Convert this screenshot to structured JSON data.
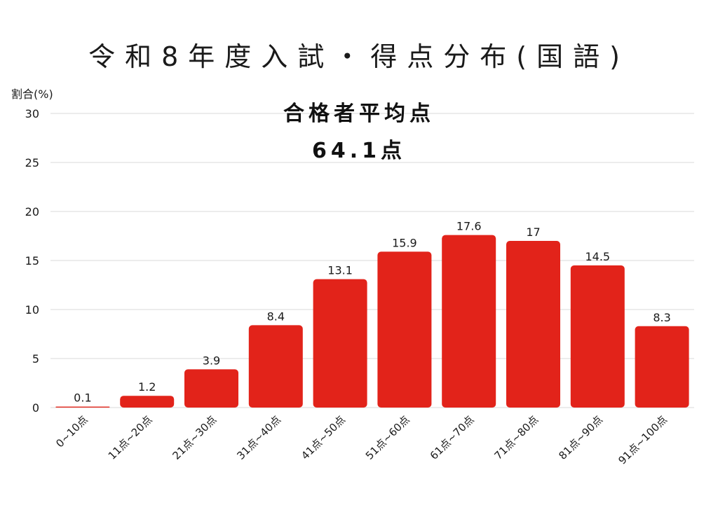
{
  "chart_data": {
    "type": "bar",
    "title": "令和8年度入試・得点分布(国語)",
    "ylabel": "割合(%)",
    "xlabel": "",
    "ylim": [
      0,
      30
    ],
    "yticks": [
      0,
      5,
      10,
      15,
      20,
      25,
      30
    ],
    "grid": true,
    "categories": [
      "0~10点",
      "11点~20点",
      "21点~30点",
      "31点~40点",
      "41点~50点",
      "51点~60点",
      "61点~70点",
      "71点~80点",
      "81点~90点",
      "91点~100点"
    ],
    "values": [
      0.1,
      1.2,
      3.9,
      8.4,
      13.1,
      15.9,
      17.6,
      17,
      14.5,
      8.3
    ],
    "value_labels": [
      "0.1",
      "1.2",
      "3.9",
      "8.4",
      "13.1",
      "15.9",
      "17.6",
      "17",
      "14.5",
      "8.3"
    ],
    "annotation_lines": [
      "合格者平均点",
      "64.1点"
    ],
    "bar_color": "#e2231a"
  }
}
